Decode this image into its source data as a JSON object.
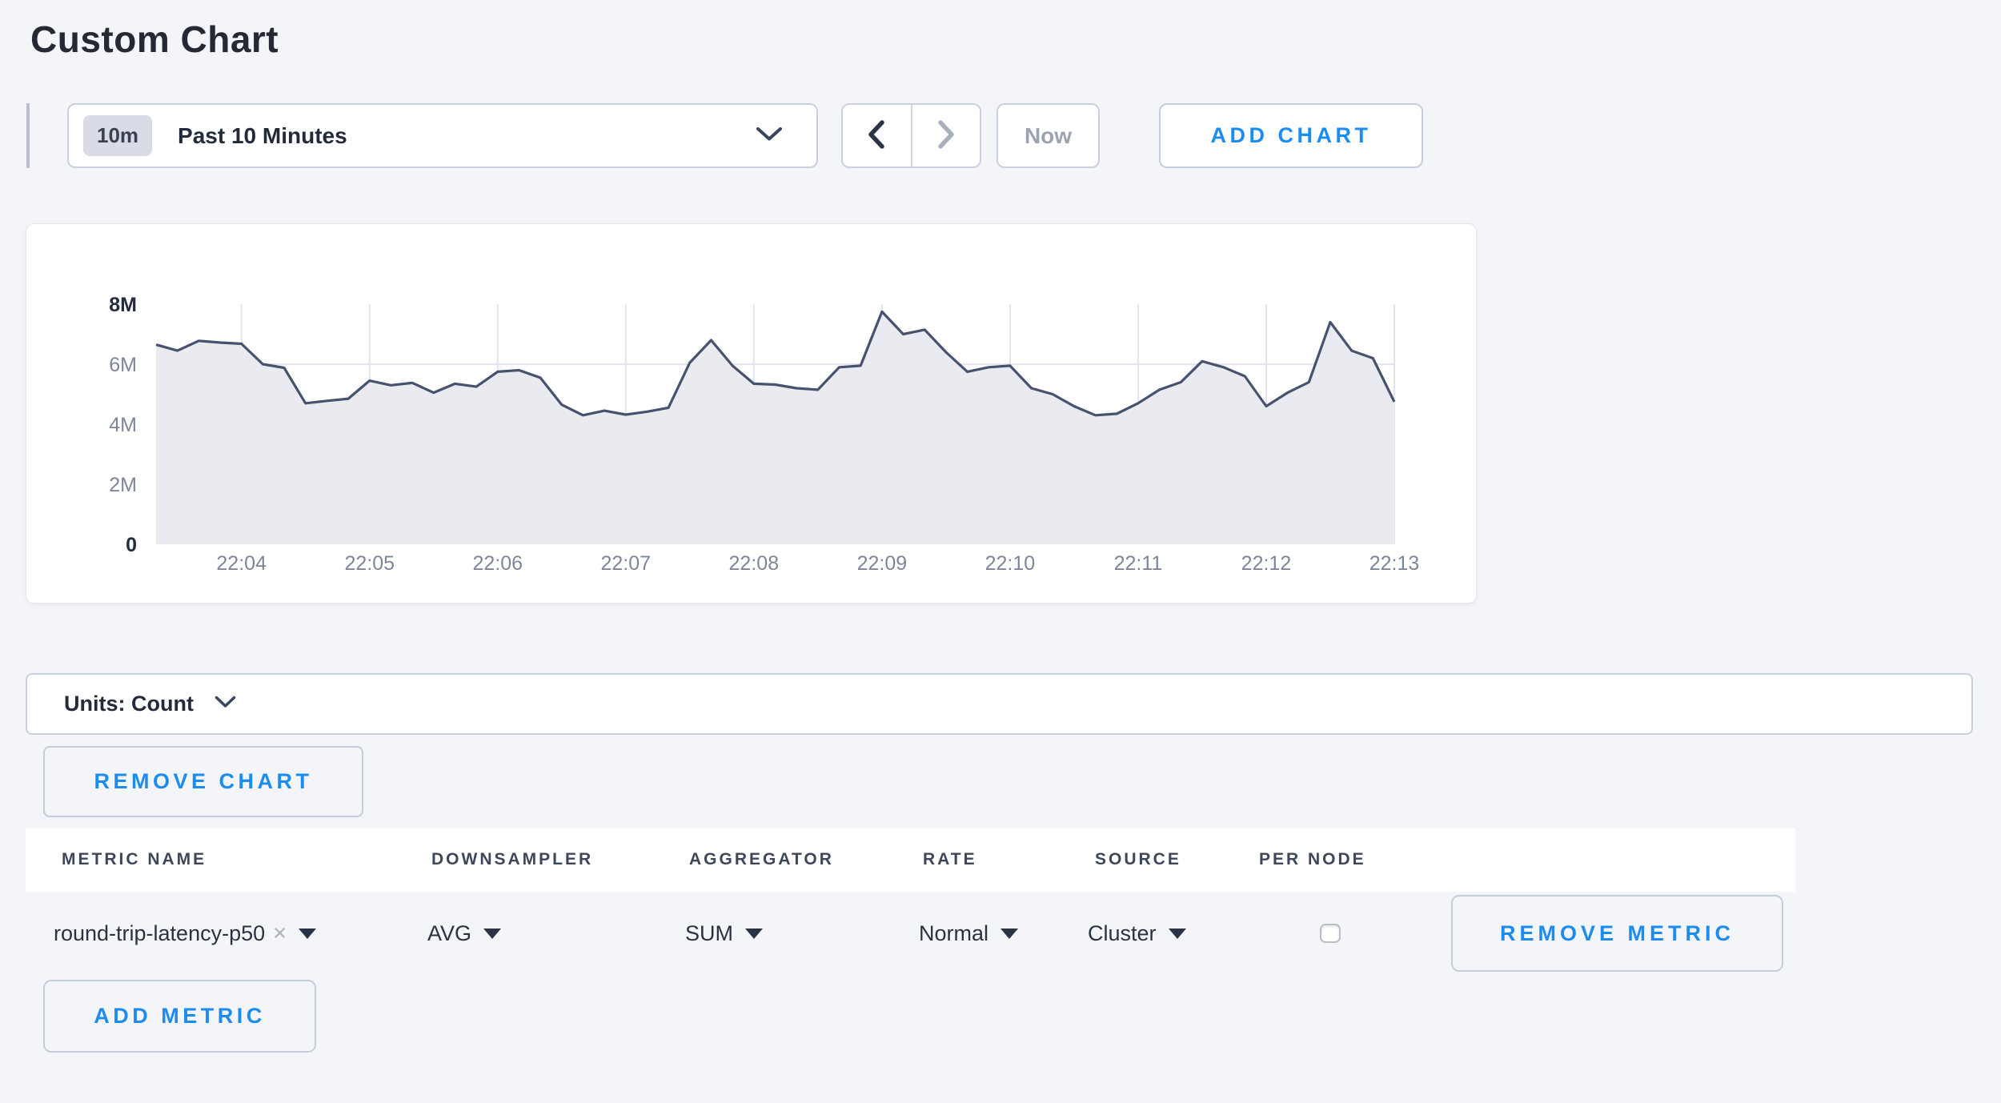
{
  "page": {
    "title": "Custom Chart"
  },
  "toolbar": {
    "range_badge": "10m",
    "range_label": "Past 10 Minutes",
    "now_label": "Now",
    "add_chart_label": "ADD CHART"
  },
  "chart_data": {
    "type": "area",
    "title": "",
    "xlabel": "",
    "ylabel": "Count",
    "unit_scale": "millions",
    "ylim": [
      0,
      8
    ],
    "grid": true,
    "legend": "none",
    "x_start": "22:03:20",
    "x_interval_seconds": 10,
    "series": [
      {
        "name": "round-trip-latency-p50",
        "values_millions": [
          6.65,
          6.45,
          6.78,
          6.72,
          6.68,
          6.0,
          5.88,
          4.7,
          4.78,
          4.85,
          5.45,
          5.3,
          5.38,
          5.05,
          5.35,
          5.25,
          5.75,
          5.8,
          5.55,
          4.65,
          4.3,
          4.45,
          4.32,
          4.42,
          4.55,
          6.05,
          6.8,
          5.95,
          5.35,
          5.32,
          5.2,
          5.15,
          5.9,
          5.95,
          7.75,
          7.0,
          7.15,
          6.4,
          5.75,
          5.9,
          5.95,
          5.2,
          5.0,
          4.6,
          4.3,
          4.35,
          4.7,
          5.15,
          5.4,
          6.1,
          5.9,
          5.6,
          4.6,
          5.05,
          5.4,
          7.4,
          6.45,
          6.2,
          4.75
        ]
      }
    ],
    "x_tick_labels": [
      "22:04",
      "22:05",
      "22:06",
      "22:07",
      "22:08",
      "22:09",
      "22:10",
      "22:11",
      "22:12",
      "22:13"
    ],
    "x_tick_indices": [
      4,
      10,
      16,
      22,
      28,
      34,
      40,
      46,
      52,
      58
    ],
    "y_ticks": [
      {
        "label": "8M",
        "value": 8,
        "bold": true,
        "gridline": false
      },
      {
        "label": "6M",
        "value": 6,
        "bold": false,
        "gridline": true
      },
      {
        "label": "4M",
        "value": 4,
        "bold": false,
        "gridline": true
      },
      {
        "label": "2M",
        "value": 2,
        "bold": false,
        "gridline": true
      },
      {
        "label": "0",
        "value": 0,
        "bold": true,
        "gridline": false
      }
    ],
    "colors": {
      "line": "#46526e",
      "fill": "#e9ebf1",
      "grid": "#e2e5ef",
      "tick_text": "#7d8698",
      "tick_text_bold": "#232c3e"
    }
  },
  "units_bar": {
    "label": "Units: Count"
  },
  "chart_actions": {
    "remove_chart_label": "REMOVE CHART"
  },
  "metric_table": {
    "columns": [
      "METRIC NAME",
      "DOWNSAMPLER",
      "AGGREGATOR",
      "RATE",
      "SOURCE",
      "PER NODE"
    ],
    "rows": [
      {
        "metric_name": "round-trip-latency-p50",
        "remove_tag": "×",
        "downsampler": "AVG",
        "aggregator": "SUM",
        "rate": "Normal",
        "source": "Cluster",
        "per_node_checked": false,
        "remove_label": "REMOVE METRIC"
      }
    ],
    "add_metric_label": "ADD METRIC"
  },
  "colors": {
    "accent_blue": "#1d8cf0",
    "page_bg": "#f4f5f9"
  }
}
